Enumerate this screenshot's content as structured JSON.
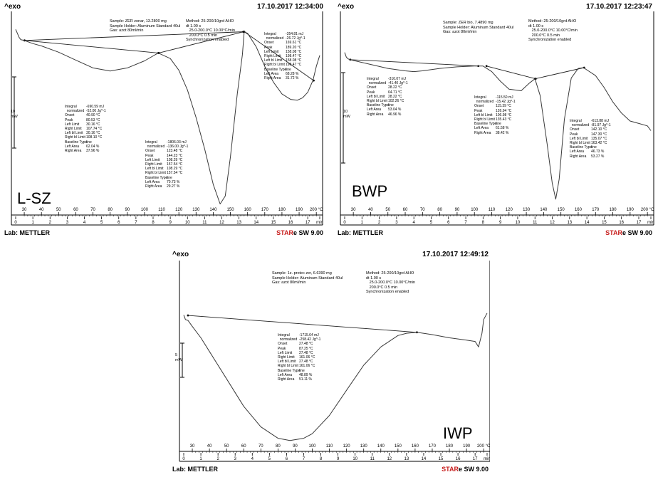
{
  "colors": {
    "stare_red": "#c8201f",
    "curve": "#3a3a3a",
    "frame": "#000000"
  },
  "charts": [
    {
      "id": "lsz",
      "corner_title": "^exo",
      "timestamp": "17.10.2017 12:34:00",
      "header_left": [
        "Sample: ZER zonar, 13.2800 mg",
        "Sample Holder: Aluminum Standard 40ul",
        "Gas: azot 80ml/min"
      ],
      "header_right": [
        "Method: 25-200/10grd AHO",
        "dt 1.00 s",
        "   25.0-200.0°C 10.00°C/min",
        "   200.0°C 0.5 min",
        "Synchronization enabled"
      ],
      "sample_name": "L-SZ",
      "lab": "Lab: METTLER",
      "star_prefix": "STAR",
      "star_suffix": "e SW 9.00",
      "scale_bar": "10\nmW",
      "temp_ticks": [
        "30",
        "40",
        "50",
        "60",
        "70",
        "80",
        "90",
        "100",
        "110",
        "120",
        "130",
        "140",
        "150",
        "160",
        "170",
        "180",
        "190",
        "200 °C"
      ],
      "min_ticks": [
        "0",
        "1",
        "2",
        "3",
        "4",
        "5",
        "6",
        "7",
        "8",
        "9",
        "10",
        "11",
        "12",
        "13",
        "14",
        "15",
        "16",
        "17",
        "min"
      ],
      "blocks": [
        {
          "label": "Integral",
          "rows": [
            [
              "Integral",
              "-690.59 mJ"
            ],
            [
              "  normalized",
              "-52.00 Jg^-1"
            ],
            [
              "Onset",
              "40.90 °C"
            ],
            [
              "Peak",
              "80.53 °C"
            ],
            [
              "Left Limit",
              "30.16 °C"
            ],
            [
              "Right Limit",
              "107.74 °C"
            ],
            [
              "Left bl Limit",
              "30.16 °C"
            ],
            [
              "Right bl Limit",
              "108.10 °C"
            ],
            [
              "Baseline Type",
              "line"
            ],
            [
              "Left Area",
              "62.04 %"
            ],
            [
              "Right Area",
              "37.96 %"
            ]
          ]
        },
        {
          "label": "Integral",
          "rows": [
            [
              "Integral",
              "-1806.03 mJ"
            ],
            [
              "  normalized",
              "-136.00 Jg^-1"
            ],
            [
              "Onset",
              "123.48 °C"
            ],
            [
              "Peak",
              "144.23 °C"
            ],
            [
              "Left Limit",
              "108.29 °C"
            ],
            [
              "Right Limit",
              "157.54 °C"
            ],
            [
              "Left bl Limit",
              "108.29 °C"
            ],
            [
              "Right bl Limit",
              "157.54 °C"
            ],
            [
              "Baseline Type",
              "line"
            ],
            [
              "Left Area",
              "70.73 %"
            ],
            [
              "Right Area",
              "29.27 %"
            ]
          ]
        },
        {
          "label": "Integral",
          "rows": [
            [
              "Integral",
              "-354.81 mJ"
            ],
            [
              "  normalized",
              "-26.72 Jg^-1"
            ],
            [
              "Onset",
              "169.61 °C"
            ],
            [
              "Peak",
              "189.20 °C"
            ],
            [
              "Left Limit",
              "158.08 °C"
            ],
            [
              "Right Limit",
              "198.47 °C"
            ],
            [
              "Left bl Limit",
              "158.08 °C"
            ],
            [
              "Right bl Limit",
              "198.47 °C"
            ],
            [
              "Baseline Type",
              "line"
            ],
            [
              "Left Area",
              "68.28 %"
            ],
            [
              "Right Area",
              "31.72 %"
            ]
          ]
        }
      ]
    },
    {
      "id": "bwp",
      "corner_title": "^exo",
      "timestamp": "17.10.2017 12:23:47",
      "header_left": [
        "Sample: ZER bio, 7.4890 mg",
        "Sample Holder: Aluminum Standard 40ul",
        "Gas: azot 80ml/min"
      ],
      "header_right": [
        "Method: 25-200/10grd AHO",
        "dt 1.00 s",
        "   25.0-200.0°C 10.00°C/min",
        "   200.0°C 0.5 min",
        "Synchronization enabled"
      ],
      "sample_name": "BWP",
      "lab": "Lab: METTLER",
      "star_prefix": "STAR",
      "star_suffix": "e SW 9.00",
      "scale_bar": "10\nmW",
      "temp_ticks": [
        "30",
        "40",
        "50",
        "60",
        "70",
        "80",
        "90",
        "100",
        "110",
        "120",
        "130",
        "140",
        "150",
        "160",
        "170",
        "180",
        "190",
        "200 °C"
      ],
      "min_ticks": [
        "0",
        "1",
        "2",
        "3",
        "4",
        "5",
        "6",
        "7",
        "8",
        "9",
        "10",
        "11",
        "12",
        "13",
        "14",
        "15",
        "16",
        "17",
        "min"
      ],
      "blocks": [
        {
          "label": "Integral",
          "rows": [
            [
              "Integral",
              "-310.07 mJ"
            ],
            [
              "  normalized",
              "-41.40 Jg^-1"
            ],
            [
              "Onset",
              "28.22 °C"
            ],
            [
              "Peak",
              "64.71 °C"
            ],
            [
              "Left bl Limit",
              "28.22 °C"
            ],
            [
              "Right bl Limit",
              "102.26 °C"
            ],
            [
              "Baseline Type",
              "line"
            ],
            [
              "Left Area",
              "53.04 %"
            ],
            [
              "Right Area",
              "46.96 %"
            ]
          ]
        },
        {
          "label": "Integral",
          "rows": [
            [
              "Integral",
              "-115.50 mJ"
            ],
            [
              "  normalized",
              "-15.42 Jg^-1"
            ],
            [
              "Onset",
              "115.39 °C"
            ],
            [
              "Peak",
              "126.94 °C"
            ],
            [
              "Left bl Limit",
              "106.98 °C"
            ],
            [
              "Right bl Limit",
              "135.43 °C"
            ],
            [
              "Baseline Type",
              "line"
            ],
            [
              "Left Area",
              "61.58 %"
            ],
            [
              "Right Area",
              "38.42 %"
            ]
          ]
        },
        {
          "label": "Integral",
          "rows": [
            [
              "Integral",
              "-613.88 mJ"
            ],
            [
              "  normalized",
              "-81.97 Jg^-1"
            ],
            [
              "Onset",
              "142.10 °C"
            ],
            [
              "Peak",
              "147.30 °C"
            ],
            [
              "Left bl Limit",
              "135.07 °C"
            ],
            [
              "Right bl Limit",
              "163.42 °C"
            ],
            [
              "Baseline Type",
              "line"
            ],
            [
              "Left Area",
              "46.73 %"
            ],
            [
              "Right Area",
              "53.27 %"
            ]
          ]
        }
      ]
    },
    {
      "id": "iwp",
      "corner_title": "^exo",
      "timestamp": "17.10.2017 12:49:12",
      "header_left": [
        "Sample: 1z. protec zer, 6.6390 mg",
        "Sample Holder: Aluminum Standard 40ul",
        "Gas: azot 80ml/min"
      ],
      "header_right": [
        "Method: 25-200/10grd AHO",
        "dt 1.00 s",
        "   25.0-200.0°C 10.00°C/min",
        "   200.0°C 0.5 min",
        "Synchronization enabled"
      ],
      "sample_name": "IWP",
      "lab": "Lab: METTLER",
      "star_prefix": "STAR",
      "star_suffix": "e SW 9.00",
      "scale_bar": "5\nmW",
      "temp_ticks": [
        "30",
        "40",
        "50",
        "60",
        "70",
        "80",
        "90",
        "100",
        "110",
        "120",
        "130",
        "140",
        "150",
        "160",
        "170",
        "180",
        "190",
        "200 °C"
      ],
      "min_ticks": [
        "0",
        "1",
        "2",
        "3",
        "4",
        "5",
        "6",
        "7",
        "8",
        "9",
        "10",
        "11",
        "12",
        "13",
        "14",
        "15",
        "16",
        "17",
        "min"
      ],
      "blocks": [
        {
          "label": "Integral",
          "rows": [
            [
              "Integral",
              "-1715.64 mJ"
            ],
            [
              "  normalized",
              "-258.42 Jg^-1"
            ],
            [
              "Onset",
              "27.48 °C"
            ],
            [
              "Peak",
              "87.25 °C"
            ],
            [
              "Left Limit",
              "27.48 °C"
            ],
            [
              "Right Limit",
              "161.06 °C"
            ],
            [
              "Left bl Limit",
              "27.48 °C"
            ],
            [
              "Right bl Limit",
              "161.06 °C"
            ],
            [
              "Baseline Type",
              "line"
            ],
            [
              "Left Area",
              "48.89 %"
            ],
            [
              "Right Area",
              "51.11 %"
            ]
          ]
        }
      ]
    }
  ],
  "chart_data": [
    {
      "type": "line",
      "title": "L-SZ",
      "xlabel": "°C",
      "xlim": [
        25,
        202
      ],
      "y_unit": "mW (relative, exo up)",
      "series": [
        {
          "name": "",
          "x": [
            25,
            26,
            27,
            28,
            30,
            35,
            40,
            50,
            60,
            70,
            80,
            90,
            100,
            108,
            115,
            120,
            125,
            130,
            135,
            140,
            144,
            147,
            150,
            154,
            157,
            158,
            160,
            165,
            170,
            175,
            180,
            185,
            189,
            192,
            195,
            198,
            200,
            202
          ],
          "y": [
            -0.3,
            -0.8,
            -1.3,
            -1.6,
            -1.7,
            -2.1,
            -2.4,
            -3.2,
            -4.2,
            -5.2,
            -5.6,
            -5.2,
            -4.3,
            -3.3,
            -4.0,
            -5.5,
            -8.0,
            -11.5,
            -15.5,
            -20.0,
            -22.5,
            -21.5,
            -16.5,
            -8.5,
            -3.5,
            -0.6,
            -0.8,
            -2.5,
            -5.0,
            -7.0,
            -8.5,
            -9.2,
            -9.3,
            -9.0,
            -8.3,
            -6.8,
            -5.0,
            -3.6
          ]
        }
      ],
      "baselines": [
        [
          [
            30.16,
            -1.7
          ],
          [
            108.1,
            -3.3
          ]
        ],
        [
          [
            30.16,
            -1.7
          ],
          [
            157.54,
            -0.6
          ]
        ],
        [
          [
            108.29,
            -3.3
          ],
          [
            157.54,
            -0.6
          ]
        ],
        [
          [
            158.08,
            -0.6
          ],
          [
            198.47,
            -6.8
          ]
        ]
      ]
    },
    {
      "type": "line",
      "title": "BWP",
      "xlabel": "°C",
      "xlim": [
        25,
        202
      ],
      "y_unit": "mW (relative, exo up)",
      "series": [
        {
          "name": "",
          "x": [
            25,
            26,
            27,
            28,
            30,
            40,
            50,
            60,
            65,
            70,
            80,
            90,
            100,
            105,
            110,
            115,
            120,
            127,
            132,
            135,
            138,
            142,
            145,
            147,
            149,
            152,
            156,
            160,
            163,
            170,
            175,
            180,
            185,
            190,
            195,
            200,
            202
          ],
          "y": [
            -0.6,
            -1.2,
            -1.4,
            -1.5,
            -1.6,
            -2.1,
            -2.6,
            -2.9,
            -3.0,
            -2.9,
            -2.6,
            -2.4,
            -2.3,
            -2.3,
            -3.0,
            -4.2,
            -5.2,
            -5.4,
            -4.4,
            -3.9,
            -6.0,
            -12.0,
            -17.0,
            -19.0,
            -16.5,
            -9.0,
            -3.8,
            -2.6,
            -2.5,
            -3.5,
            -5.0,
            -6.8,
            -8.2,
            -9.2,
            -9.5,
            -9.8,
            -10.4
          ]
        }
      ],
      "baselines": [
        [
          [
            28.22,
            -1.5
          ],
          [
            102.26,
            -2.3
          ]
        ],
        [
          [
            106.98,
            -2.3
          ],
          [
            135.43,
            -3.9
          ]
        ],
        [
          [
            135.07,
            -3.9
          ],
          [
            163.42,
            -2.5
          ]
        ]
      ]
    },
    {
      "type": "line",
      "title": "IWP",
      "xlabel": "°C",
      "xlim": [
        25,
        202
      ],
      "y_unit": "mW (relative, exo up)",
      "series": [
        {
          "name": "",
          "x": [
            25,
            26,
            27.5,
            30,
            35,
            40,
            50,
            60,
            70,
            80,
            87,
            95,
            100,
            110,
            120,
            130,
            140,
            150,
            155,
            161,
            170,
            180,
            190,
            195,
            197,
            199,
            200,
            202
          ],
          "y": [
            -1.0,
            -2.0,
            -2.2,
            -3.5,
            -6.0,
            -9.0,
            -15.0,
            -21.0,
            -25.5,
            -28.0,
            -28.5,
            -28.0,
            -27.0,
            -23.0,
            -17.5,
            -12.0,
            -8.0,
            -5.5,
            -5.0,
            -4.8,
            -5.3,
            -6.0,
            -6.5,
            -6.8,
            -8.0,
            -5.0,
            -2.0,
            -0.6
          ]
        }
      ],
      "baselines": [
        [
          [
            27.48,
            -1.1
          ],
          [
            161.06,
            -4.8
          ]
        ]
      ]
    }
  ]
}
